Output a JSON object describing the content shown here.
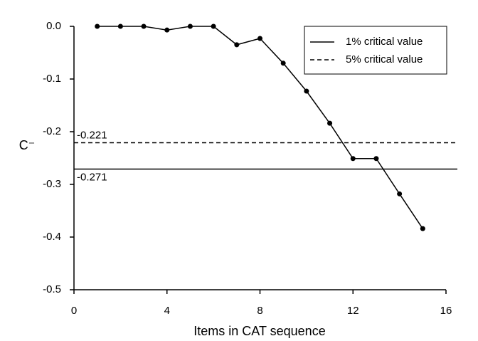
{
  "chart_data": {
    "type": "line",
    "x_label": "Items in CAT sequence",
    "y_label": "C⁻",
    "x": [
      1,
      2,
      3,
      4,
      5,
      6,
      7,
      8,
      9,
      10,
      11,
      12,
      13,
      14,
      15
    ],
    "series": [
      {
        "color": "#000000",
        "values": [
          0,
          0,
          0,
          -0.007,
          0,
          0,
          -0.035,
          -0.023,
          -0.07,
          -0.123,
          -0.184,
          -0.251,
          -0.251,
          -0.318,
          -0.384
        ]
      }
    ],
    "reference_lines": [
      {
        "name": "1% critical value",
        "value": -0.271,
        "style": "solid"
      },
      {
        "name": "5% critical value",
        "value": -0.221,
        "style": "dashed"
      }
    ],
    "xlim": [
      0,
      16
    ],
    "xticks": [
      0,
      4,
      8,
      12,
      16
    ],
    "ylim": [
      -0.5,
      0
    ],
    "yticks": [
      {
        "value": 0,
        "label": "0.0"
      },
      -0.1,
      -0.2,
      -0.3,
      -0.4,
      -0.5
    ],
    "legend": "top-right"
  }
}
